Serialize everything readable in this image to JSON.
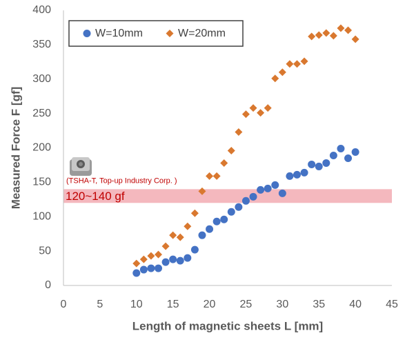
{
  "chart_data": {
    "type": "scatter",
    "xlabel": "Length of magnetic sheets L [mm]",
    "ylabel": "Measured Force F [gf]",
    "x": [
      10,
      11,
      12,
      13,
      14,
      15,
      16,
      17,
      18,
      19,
      20,
      21,
      22,
      23,
      24,
      25,
      26,
      27,
      28,
      29,
      30,
      31,
      32,
      33,
      34,
      35,
      36,
      37,
      38,
      39,
      40
    ],
    "series": [
      {
        "name": "W=10mm",
        "color": "#4472c4",
        "marker": "circle",
        "values": [
          18,
          23,
          25,
          25,
          34,
          38,
          36,
          40,
          52,
          73,
          82,
          93,
          96,
          107,
          114,
          123,
          129,
          139,
          141,
          146,
          134,
          159,
          161,
          164,
          176,
          173,
          178,
          189,
          199,
          185,
          194
        ]
      },
      {
        "name": "W=20mm",
        "color": "#d9782f",
        "marker": "diamond",
        "values": [
          32,
          38,
          43,
          45,
          57,
          73,
          70,
          86,
          105,
          137,
          159,
          159,
          178,
          196,
          223,
          249,
          258,
          251,
          258,
          301,
          310,
          322,
          322,
          326,
          362,
          364,
          367,
          363,
          374,
          371,
          358
        ]
      }
    ],
    "band": {
      "range": [
        120,
        140
      ],
      "label": "120~140 gf",
      "note": "(TSHA-T, Top-up Industry Corp. )",
      "color": "#f4b8be"
    },
    "xlim": [
      0,
      45
    ],
    "xticks": [
      0,
      5,
      10,
      15,
      20,
      25,
      30,
      35,
      40,
      45
    ],
    "ylim": [
      0,
      400
    ],
    "yticks": [
      0,
      50,
      100,
      150,
      200,
      250,
      300,
      350,
      400
    ],
    "legend": "upper-left",
    "grid": false
  }
}
